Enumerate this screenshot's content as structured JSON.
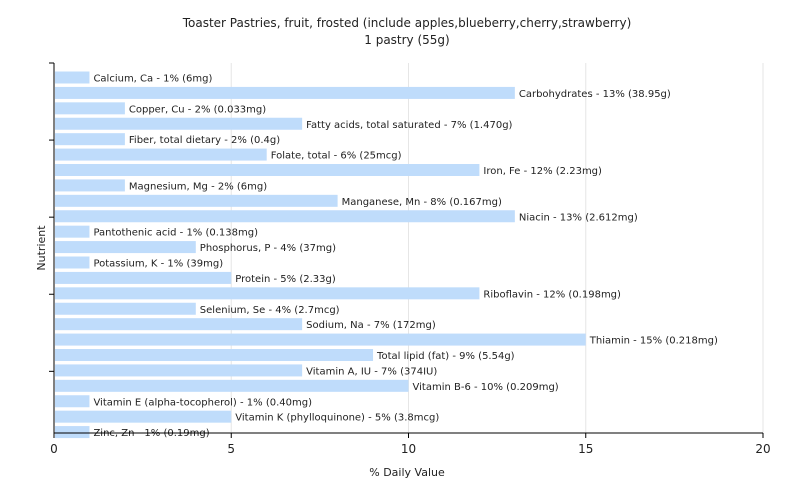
{
  "chart_data": {
    "type": "bar",
    "orientation": "horizontal",
    "title": "Toaster Pastries, fruit, frosted (include apples,blueberry,cherry,strawberry)",
    "subtitle": "1 pastry (55g)",
    "xlabel": "% Daily Value",
    "ylabel": "Nutrient",
    "xlim": [
      0,
      20
    ],
    "xticks": [
      0,
      5,
      10,
      15,
      20
    ],
    "grid": true,
    "bar_color": "#bfdcfb",
    "categories": [
      "Calcium, Ca",
      "Carbohydrates",
      "Copper, Cu",
      "Fatty acids, total saturated",
      "Fiber, total dietary",
      "Folate, total",
      "Iron, Fe",
      "Magnesium, Mg",
      "Manganese, Mn",
      "Niacin",
      "Pantothenic acid",
      "Phosphorus, P",
      "Potassium, K",
      "Protein",
      "Riboflavin",
      "Selenium, Se",
      "Sodium, Na",
      "Thiamin",
      "Total lipid (fat)",
      "Vitamin A, IU",
      "Vitamin B-6",
      "Vitamin E (alpha-tocopherol)",
      "Vitamin K (phylloquinone)",
      "Zinc, Zn"
    ],
    "values": [
      1,
      13,
      2,
      7,
      2,
      6,
      12,
      2,
      8,
      13,
      1,
      4,
      1,
      5,
      12,
      4,
      7,
      15,
      9,
      7,
      10,
      1,
      5,
      1
    ],
    "labels": [
      "Calcium, Ca - 1% (6mg)",
      "Carbohydrates - 13% (38.95g)",
      "Copper, Cu - 2% (0.033mg)",
      "Fatty acids, total saturated - 7% (1.470g)",
      "Fiber, total dietary - 2% (0.4g)",
      "Folate, total - 6% (25mcg)",
      "Iron, Fe - 12% (2.23mg)",
      "Magnesium, Mg - 2% (6mg)",
      "Manganese, Mn - 8% (0.167mg)",
      "Niacin - 13% (2.612mg)",
      "Pantothenic acid - 1% (0.138mg)",
      "Phosphorus, P - 4% (37mg)",
      "Potassium, K - 1% (39mg)",
      "Protein - 5% (2.33g)",
      "Riboflavin - 12% (0.198mg)",
      "Selenium, Se - 4% (2.7mcg)",
      "Sodium, Na - 7% (172mg)",
      "Thiamin - 15% (0.218mg)",
      "Total lipid (fat) - 9% (5.54g)",
      "Vitamin A, IU - 7% (374IU)",
      "Vitamin B-6 - 10% (0.209mg)",
      "Vitamin E (alpha-tocopherol) - 1% (0.40mg)",
      "Vitamin K (phylloquinone) - 5% (3.8mcg)",
      "Zinc, Zn - 1% (0.19mg)"
    ]
  }
}
